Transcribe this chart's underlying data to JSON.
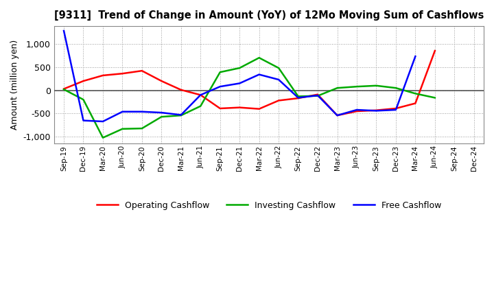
{
  "title": "[9311]  Trend of Change in Amount (YoY) of 12Mo Moving Sum of Cashflows",
  "ylabel": "Amount (million yen)",
  "x_labels": [
    "Sep-19",
    "Dec-19",
    "Mar-20",
    "Jun-20",
    "Sep-20",
    "Dec-20",
    "Mar-21",
    "Jun-21",
    "Sep-21",
    "Dec-21",
    "Mar-22",
    "Jun-22",
    "Sep-22",
    "Dec-22",
    "Mar-23",
    "Jun-23",
    "Sep-23",
    "Dec-23",
    "Mar-24",
    "Jun-24",
    "Sep-24",
    "Dec-24"
  ],
  "operating": [
    30,
    200,
    320,
    360,
    420,
    200,
    10,
    -100,
    -390,
    -370,
    -400,
    -220,
    -170,
    -90,
    -540,
    -450,
    -430,
    -390,
    -280,
    850,
    null,
    null
  ],
  "investing": [
    20,
    -200,
    -1020,
    -830,
    -820,
    -570,
    -540,
    -340,
    390,
    480,
    700,
    480,
    -130,
    -120,
    50,
    80,
    100,
    50,
    -70,
    -160,
    null,
    null
  ],
  "free": [
    1280,
    -650,
    -670,
    -460,
    -460,
    -480,
    -530,
    -100,
    80,
    150,
    340,
    230,
    -160,
    -110,
    -540,
    -420,
    -440,
    -420,
    730,
    null,
    null,
    null
  ],
  "operating_color": "#ff0000",
  "investing_color": "#00aa00",
  "free_color": "#0000ff",
  "background_color": "#ffffff",
  "grid_color": "#999999",
  "ylim": [
    -1150,
    1380
  ],
  "yticks": [
    -1000,
    -500,
    0,
    500,
    1000
  ],
  "legend_labels": [
    "Operating Cashflow",
    "Investing Cashflow",
    "Free Cashflow"
  ]
}
